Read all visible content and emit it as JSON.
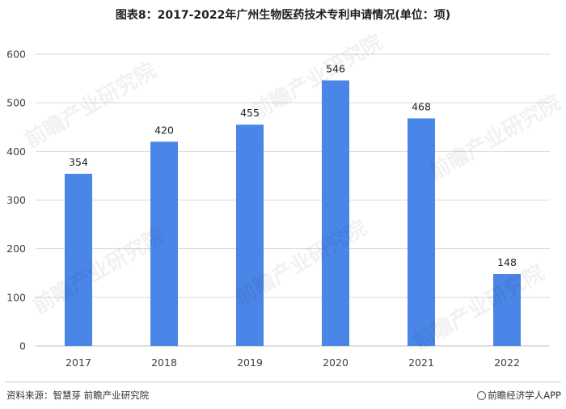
{
  "title": "图表8：2017-2022年广州生物医药技术专利申请情况(单位：项)",
  "source": "资料来源：智慧芽 前瞻产业研究院",
  "brand": "前瞻经济学人APP",
  "watermark": "前瞻产业研究院",
  "colors": {
    "bar": "#4a86e8",
    "grid": "#d9d9d9",
    "axis": "#bfbfbf",
    "text": "#404040"
  },
  "chart_data": {
    "type": "bar",
    "title": "图表8：2017-2022年广州生物医药技术专利申请情况(单位：项)",
    "categories": [
      "2017",
      "2018",
      "2019",
      "2020",
      "2021",
      "2022"
    ],
    "values": [
      354,
      420,
      455,
      546,
      468,
      148
    ],
    "ylim": [
      0,
      600
    ],
    "yticks": [
      0,
      100,
      200,
      300,
      400,
      500,
      600
    ],
    "grid": true,
    "xlabel": "",
    "ylabel": ""
  }
}
